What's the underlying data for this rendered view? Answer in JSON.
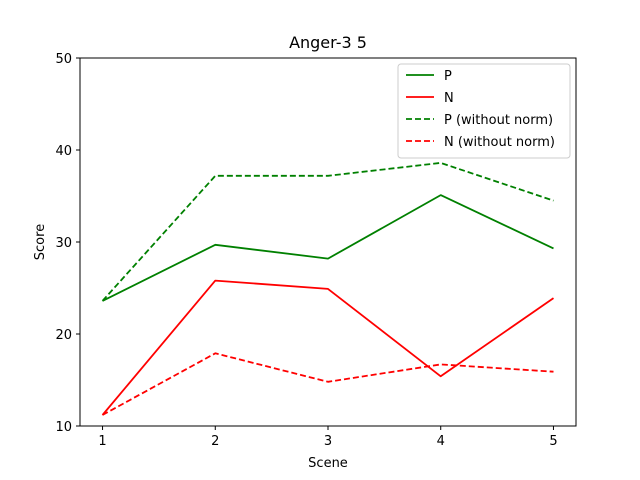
{
  "chart_data": {
    "type": "line",
    "title": "Anger-3 5",
    "xlabel": "Scene",
    "ylabel": "Score",
    "x": [
      1,
      2,
      3,
      4,
      5
    ],
    "xticks": [
      "1",
      "2",
      "3",
      "4",
      "5"
    ],
    "yticks": [
      "10",
      "20",
      "30",
      "40",
      "50"
    ],
    "xlim": [
      0.8,
      5.2
    ],
    "ylim": [
      10,
      50
    ],
    "grid": false,
    "legend_position": "top-right",
    "series": [
      {
        "name": "P",
        "values": [
          23.6,
          29.7,
          28.2,
          35.1,
          29.3
        ],
        "color": "#008000",
        "dash": "solid"
      },
      {
        "name": "N",
        "values": [
          11.2,
          25.8,
          24.9,
          15.4,
          23.9
        ],
        "color": "#ff0000",
        "dash": "solid"
      },
      {
        "name": "P (without norm)",
        "values": [
          23.6,
          37.2,
          37.2,
          38.6,
          34.5
        ],
        "color": "#008000",
        "dash": "dashed"
      },
      {
        "name": "N (without norm)",
        "values": [
          11.2,
          17.9,
          14.8,
          16.7,
          15.9
        ],
        "color": "#ff0000",
        "dash": "dashed"
      }
    ]
  }
}
